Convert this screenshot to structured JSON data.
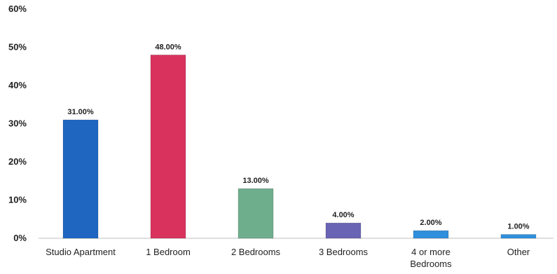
{
  "chart_data": {
    "type": "bar",
    "title": "",
    "xlabel": "",
    "ylabel": "",
    "categories": [
      [
        "Studio Apartment"
      ],
      [
        "1 Bedroom"
      ],
      [
        "2 Bedrooms"
      ],
      [
        "3 Bedrooms"
      ],
      [
        "4 or more",
        "Bedrooms"
      ],
      [
        "Other"
      ]
    ],
    "values": [
      31,
      48,
      13,
      4,
      2,
      1
    ],
    "data_labels": [
      "31.00%",
      "48.00%",
      "13.00%",
      "4.00%",
      "2.00%",
      "1.00%"
    ],
    "colors": [
      "#1f66c1",
      "#d9335d",
      "#6fae8d",
      "#6a64b4",
      "#2f8fdc",
      "#2f8fdc"
    ],
    "ylim": [
      0,
      60
    ],
    "yticks": [
      0,
      10,
      20,
      30,
      40,
      50,
      60
    ],
    "ytick_labels": [
      "0%",
      "10%",
      "20%",
      "30%",
      "40%",
      "50%",
      "60%"
    ],
    "grid": false,
    "legend": "none"
  }
}
